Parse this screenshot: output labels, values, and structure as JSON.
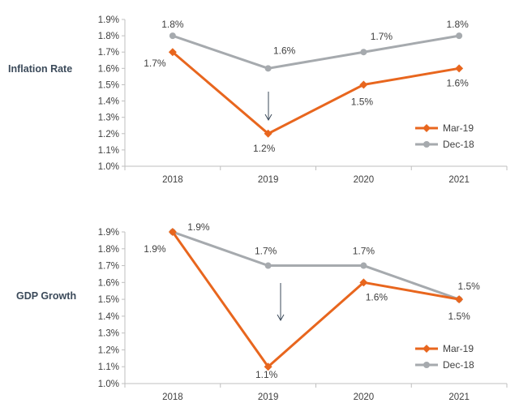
{
  "colors": {
    "mar19": "#E8661E",
    "dec18": "#A6AAAE",
    "axis": "#bfbfbf",
    "arrow": "#3b4a5a"
  },
  "chart_data": [
    {
      "type": "line",
      "row_label": "Inflation Rate",
      "categories": [
        "2018",
        "2019",
        "2020",
        "2021"
      ],
      "ylim": [
        1.0,
        1.9
      ],
      "y_ticks": [
        "1.9%",
        "1.8%",
        "1.7%",
        "1.6%",
        "1.5%",
        "1.4%",
        "1.3%",
        "1.2%",
        "1.1%",
        "1.0%"
      ],
      "legend_position": "bottom-right",
      "series": [
        {
          "name": "Mar-19",
          "color": "#E8661E",
          "marker": "diamond",
          "values": [
            1.7,
            1.2,
            1.5,
            1.6
          ],
          "labels": [
            "1.7%",
            "1.2%",
            "1.5%",
            "1.6%"
          ]
        },
        {
          "name": "Dec-18",
          "color": "#A6AAAE",
          "marker": "circle",
          "values": [
            1.8,
            1.6,
            1.7,
            1.8
          ],
          "labels": [
            "1.8%",
            "1.6%",
            "1.7%",
            "1.8%"
          ]
        }
      ],
      "annotation": "downward arrow at 2019"
    },
    {
      "type": "line",
      "row_label": "GDP Growth",
      "categories": [
        "2018",
        "2019",
        "2020",
        "2021"
      ],
      "ylim": [
        1.0,
        1.9
      ],
      "y_ticks": [
        "1.9%",
        "1.8%",
        "1.7%",
        "1.6%",
        "1.5%",
        "1.4%",
        "1.3%",
        "1.2%",
        "1.1%",
        "1.0%"
      ],
      "legend_position": "bottom-right",
      "series": [
        {
          "name": "Mar-19",
          "color": "#E8661E",
          "marker": "diamond",
          "values": [
            1.9,
            1.1,
            1.6,
            1.5
          ],
          "labels": [
            "1.9%",
            "1.1%",
            "1.6%",
            "1.5%"
          ]
        },
        {
          "name": "Dec-18",
          "color": "#A6AAAE",
          "marker": "circle",
          "values": [
            1.9,
            1.7,
            1.7,
            1.5
          ],
          "labels": [
            "1.9%",
            "1.7%",
            "1.7%",
            "1.5%"
          ]
        }
      ],
      "annotation": "downward arrow at 2019"
    }
  ]
}
